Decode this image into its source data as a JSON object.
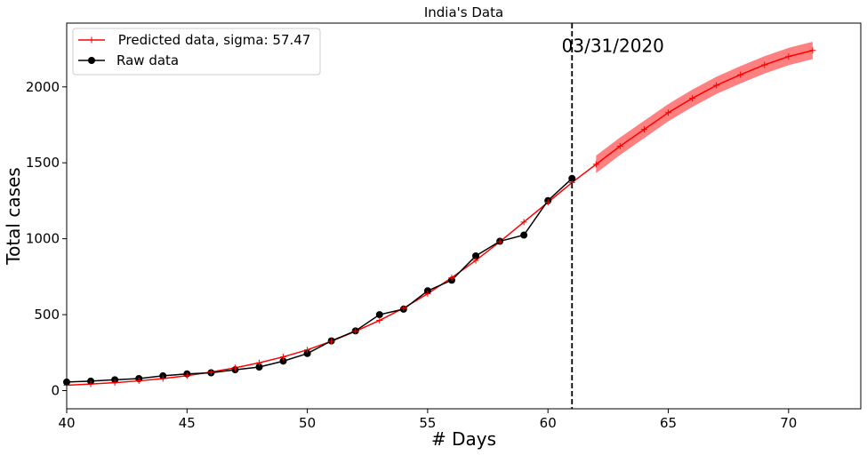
{
  "chart_data": {
    "type": "line",
    "title": "India's Data",
    "xlabel": "# Days",
    "ylabel": "Total cases",
    "xlim": [
      40,
      73
    ],
    "ylim": [
      -120,
      2420
    ],
    "xticks": [
      40,
      45,
      50,
      55,
      60,
      65,
      70
    ],
    "yticks": [
      0,
      500,
      1000,
      1500,
      2000
    ],
    "grid": false,
    "legend_position": "upper left",
    "vline": {
      "x": 61,
      "style": "dashed",
      "color": "#000000"
    },
    "annotation": {
      "text": "03/31/2020",
      "x": 61,
      "y": 2260
    },
    "series": [
      {
        "name": " Predicted data, sigma: 57.47",
        "color": "#ff0000",
        "marker": "+",
        "x": [
          40,
          41,
          42,
          43,
          44,
          45,
          46,
          47,
          48,
          49,
          50,
          51,
          52,
          53,
          54,
          55,
          56,
          57,
          58,
          59,
          60,
          61,
          62,
          63,
          64,
          65,
          66,
          67,
          68,
          69,
          70,
          71
        ],
        "values": [
          35,
          43,
          52,
          64,
          79,
          98,
          122,
          150,
          183,
          222,
          268,
          325,
          390,
          462,
          543,
          638,
          743,
          857,
          980,
          1110,
          1240,
          1370,
          1490,
          1610,
          1720,
          1830,
          1925,
          2010,
          2080,
          2145,
          2200,
          2240
        ]
      },
      {
        "name": "Raw data",
        "color": "#000000",
        "marker": "o",
        "x": [
          40,
          41,
          42,
          43,
          44,
          45,
          46,
          47,
          48,
          49,
          50,
          51,
          52,
          53,
          54,
          55,
          56,
          57,
          58,
          59,
          60,
          61
        ],
        "values": [
          56,
          62,
          71,
          79,
          97,
          110,
          117,
          137,
          155,
          194,
          244,
          327,
          393,
          500,
          536,
          657,
          727,
          887,
          983,
          1024,
          1251,
          1397
        ]
      }
    ],
    "band": {
      "color": "#ff8080",
      "x": [
        62,
        63,
        64,
        65,
        66,
        67,
        68,
        69,
        70,
        71
      ],
      "lower": [
        1432,
        1552,
        1663,
        1773,
        1868,
        1953,
        2023,
        2088,
        2143,
        2183
      ],
      "upper": [
        1547,
        1667,
        1777,
        1887,
        1982,
        2067,
        2137,
        2202,
        2257,
        2297
      ]
    }
  }
}
